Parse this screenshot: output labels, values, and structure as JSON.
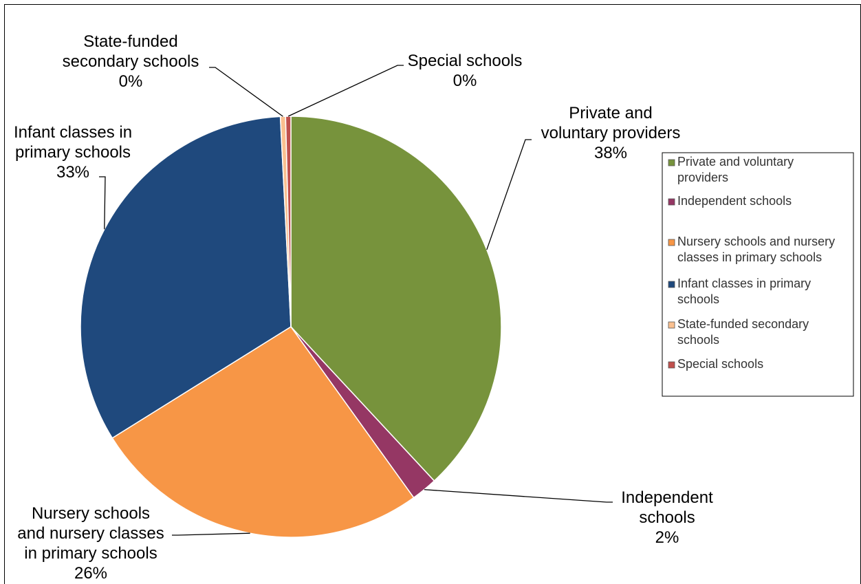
{
  "chart_data": {
    "type": "pie",
    "title": "",
    "slices": [
      {
        "name": "Private and voluntary providers",
        "value": 38,
        "label": "38%",
        "color": "#77933C",
        "callout": [
          "Private and",
          "voluntary providers",
          "38%"
        ]
      },
      {
        "name": "Independent schools",
        "value": 2,
        "label": "2%",
        "color": "#953764",
        "callout": [
          "Independent",
          "schools",
          "2%"
        ]
      },
      {
        "name": "Nursery schools and nursery classes in primary schools",
        "value": 26,
        "label": "26%",
        "color": "#F79646",
        "callout": [
          "Nursery schools",
          "and nursery classes",
          "in primary schools",
          "26%"
        ]
      },
      {
        "name": "Infant classes in primary schools",
        "value": 33,
        "label": "33%",
        "color": "#1F497D",
        "callout": [
          "Infant classes in",
          "primary schools",
          "33%"
        ]
      },
      {
        "name": "State-funded secondary schools",
        "value": 0.4,
        "label": "0%",
        "color": "#FAC090",
        "callout": [
          "State-funded",
          "secondary schools",
          "0%"
        ]
      },
      {
        "name": "Special schools",
        "value": 0.4,
        "label": "0%",
        "color": "#C0504D",
        "callout": [
          "Special schools",
          "0%"
        ]
      }
    ],
    "legend": {
      "position": "right",
      "entries": [
        [
          "Private and voluntary",
          "providers"
        ],
        [
          "Independent schools"
        ],
        [
          "Nursery schools and nursery",
          "classes in primary schools"
        ],
        [
          "Infant classes in primary",
          "schools"
        ],
        [
          "State-funded secondary",
          "schools"
        ],
        [
          "Special schools"
        ]
      ]
    }
  }
}
